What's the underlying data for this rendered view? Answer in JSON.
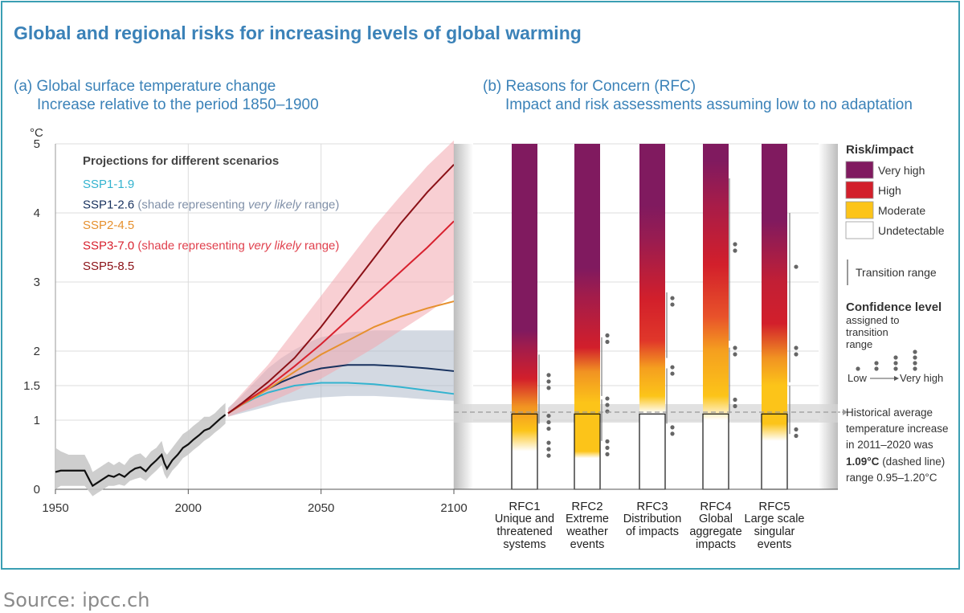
{
  "title": "Global and regional risks for increasing levels of global warming",
  "panel_a": {
    "title_line1": "(a) Global surface temperature change",
    "title_line2": "Increase relative to the period 1850–1900",
    "unit": "°C",
    "legend_heading": "Projections for different scenarios",
    "legend": [
      {
        "name": "SSP1-1.9",
        "color": "#33b3cf",
        "note": "",
        "note_italic": "",
        "note_end": ""
      },
      {
        "name": "SSP1-2.6",
        "color": "#17315e",
        "note": "(shade representing ",
        "note_italic": "very likely",
        "note_end": " range)"
      },
      {
        "name": "SSP2-4.5",
        "color": "#e6902e",
        "note": "",
        "note_italic": "",
        "note_end": ""
      },
      {
        "name": "SSP3-7.0",
        "color": "#d8222f",
        "note": "(shade representing ",
        "note_italic": "very likely",
        "note_end": " range)"
      },
      {
        "name": "SSP5-8.5",
        "color": "#8b1117",
        "note": "",
        "note_italic": "",
        "note_end": ""
      }
    ]
  },
  "panel_b": {
    "title_line1": "(b) Reasons for Concern (RFC)",
    "title_line2": "Impact and risk assessments assuming low to no adaptation",
    "rfcs": [
      {
        "code": "RFC1",
        "lines": [
          "Unique and",
          "threatened",
          "systems"
        ]
      },
      {
        "code": "RFC2",
        "lines": [
          "Extreme",
          "weather",
          "events"
        ]
      },
      {
        "code": "RFC3",
        "lines": [
          "Distribution",
          "of impacts"
        ]
      },
      {
        "code": "RFC4",
        "lines": [
          "Global",
          "aggregate",
          "impacts"
        ]
      },
      {
        "code": "RFC5",
        "lines": [
          "Large scale",
          "singular",
          "events"
        ]
      }
    ],
    "key_title": "Risk/impact",
    "key_items": [
      {
        "label": "Very high",
        "color": "#801a5f"
      },
      {
        "label": "High",
        "color": "#d21f2b"
      },
      {
        "label": "Moderate",
        "color": "#fcc419"
      },
      {
        "label": "Undetectable",
        "color": "#ffffff"
      }
    ],
    "transition_label": "Transition range",
    "confidence_title": "Confidence level",
    "confidence_sub": [
      "assigned to",
      "transition",
      "range"
    ],
    "confidence_low": "Low",
    "confidence_high": "Very high",
    "historical_note": [
      "Historical average",
      "temperature increase",
      "in 2011–2020 was"
    ],
    "historical_value": "1.09°C",
    "historical_value_suffix": " (dashed line)",
    "historical_range": "range 0.95–1.20°C"
  },
  "chart_data": {
    "type": "line",
    "xlabel": "",
    "ylabel": "°C",
    "xlim": [
      1950,
      2100
    ],
    "ylim": [
      0,
      5
    ],
    "x_ticks": [
      1950,
      2000,
      2050,
      2100
    ],
    "y_ticks": [
      0,
      1,
      1.5,
      2,
      3,
      4,
      5
    ],
    "y_tick_labels": [
      "0",
      "1",
      "1.5",
      "2",
      "3",
      "4",
      "5"
    ],
    "historical": {
      "years": [
        1950,
        1952,
        1955,
        1958,
        1961,
        1963,
        1964,
        1966,
        1968,
        1970,
        1972,
        1974,
        1976,
        1978,
        1980,
        1982,
        1984,
        1986,
        1988,
        1990,
        1991,
        1992,
        1994,
        1996,
        1998,
        2000,
        2002,
        2004,
        2006,
        2008,
        2010,
        2012,
        2014
      ],
      "values": [
        0.25,
        0.27,
        0.27,
        0.27,
        0.27,
        0.12,
        0.05,
        0.1,
        0.15,
        0.2,
        0.18,
        0.22,
        0.18,
        0.25,
        0.3,
        0.32,
        0.26,
        0.35,
        0.42,
        0.5,
        0.38,
        0.3,
        0.42,
        0.5,
        0.6,
        0.65,
        0.72,
        0.78,
        0.85,
        0.88,
        0.95,
        1.02,
        1.08
      ],
      "range_lower": [
        0.0,
        0.05,
        0.05,
        0.05,
        0.05,
        -0.05,
        -0.1,
        -0.05,
        0.0,
        0.05,
        0.05,
        0.07,
        0.05,
        0.12,
        0.15,
        0.17,
        0.12,
        0.2,
        0.27,
        0.35,
        0.22,
        0.15,
        0.27,
        0.35,
        0.45,
        0.5,
        0.57,
        0.63,
        0.7,
        0.75,
        0.82,
        0.88,
        0.95
      ],
      "range_upper": [
        0.6,
        0.55,
        0.5,
        0.5,
        0.5,
        0.35,
        0.25,
        0.3,
        0.35,
        0.4,
        0.35,
        0.4,
        0.35,
        0.45,
        0.5,
        0.52,
        0.45,
        0.55,
        0.6,
        0.7,
        0.55,
        0.5,
        0.6,
        0.7,
        0.8,
        0.85,
        0.92,
        0.98,
        1.05,
        1.05,
        1.1,
        1.18,
        1.25
      ]
    },
    "series": [
      {
        "name": "SSP1-1.9",
        "color": "#33b3cf",
        "x": [
          2015,
          2020,
          2025,
          2030,
          2035,
          2040,
          2045,
          2050,
          2060,
          2070,
          2080,
          2090,
          2100
        ],
        "y": [
          1.1,
          1.22,
          1.32,
          1.4,
          1.45,
          1.5,
          1.52,
          1.54,
          1.54,
          1.52,
          1.48,
          1.43,
          1.38
        ]
      },
      {
        "name": "SSP1-2.6",
        "color": "#17315e",
        "x": [
          2015,
          2020,
          2025,
          2030,
          2035,
          2040,
          2045,
          2050,
          2060,
          2070,
          2080,
          2090,
          2100
        ],
        "y": [
          1.1,
          1.23,
          1.35,
          1.45,
          1.55,
          1.63,
          1.7,
          1.75,
          1.8,
          1.8,
          1.78,
          1.75,
          1.71
        ],
        "range_lower": [
          1.05,
          1.1,
          1.15,
          1.2,
          1.25,
          1.28,
          1.31,
          1.33,
          1.35,
          1.35,
          1.33,
          1.3,
          1.28
        ],
        "range_upper": [
          1.18,
          1.35,
          1.55,
          1.75,
          1.9,
          2.02,
          2.12,
          2.2,
          2.27,
          2.3,
          2.3,
          2.3,
          2.3
        ]
      },
      {
        "name": "SSP2-4.5",
        "color": "#e6902e",
        "x": [
          2015,
          2020,
          2030,
          2040,
          2050,
          2060,
          2070,
          2080,
          2090,
          2100
        ],
        "y": [
          1.1,
          1.22,
          1.45,
          1.7,
          1.95,
          2.15,
          2.35,
          2.5,
          2.62,
          2.72
        ]
      },
      {
        "name": "SSP3-7.0",
        "color": "#d8222f",
        "x": [
          2015,
          2020,
          2030,
          2040,
          2050,
          2060,
          2070,
          2080,
          2090,
          2100
        ],
        "y": [
          1.1,
          1.23,
          1.48,
          1.78,
          2.1,
          2.45,
          2.8,
          3.15,
          3.5,
          3.88
        ],
        "range_lower": [
          1.05,
          1.12,
          1.25,
          1.42,
          1.6,
          1.82,
          2.05,
          2.3,
          2.55,
          2.82
        ],
        "range_upper": [
          1.16,
          1.38,
          1.8,
          2.3,
          2.8,
          3.3,
          3.8,
          4.25,
          4.68,
          5.05
        ]
      },
      {
        "name": "SSP5-8.5",
        "color": "#8b1117",
        "x": [
          2015,
          2020,
          2030,
          2040,
          2050,
          2060,
          2070,
          2080,
          2090,
          2100
        ],
        "y": [
          1.1,
          1.24,
          1.55,
          1.9,
          2.35,
          2.85,
          3.35,
          3.85,
          4.3,
          4.7
        ]
      }
    ]
  }
}
